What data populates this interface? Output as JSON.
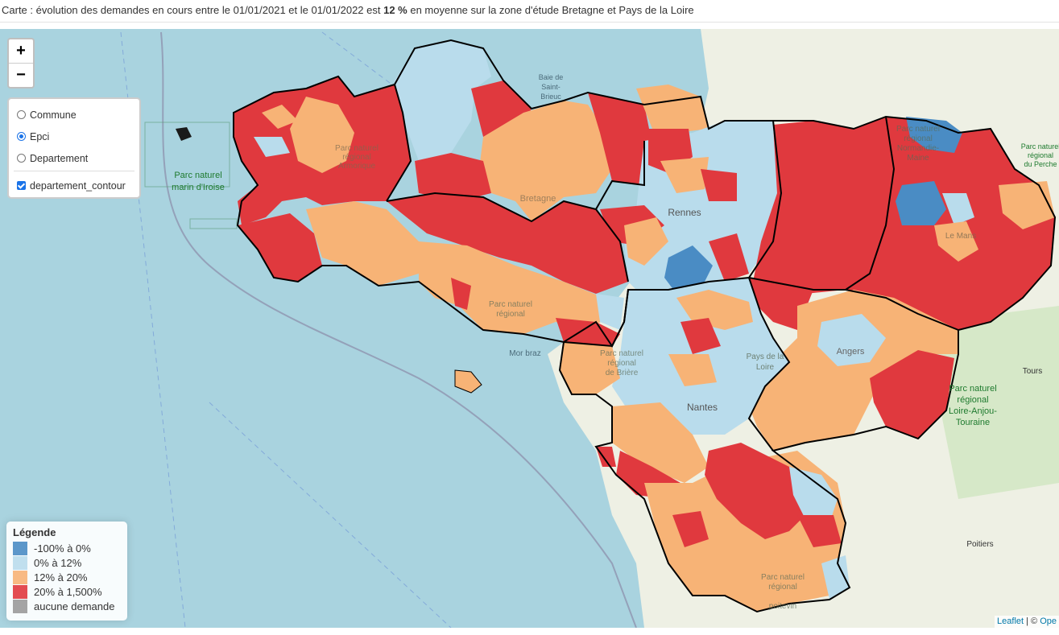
{
  "caption": {
    "prefix": "Carte : évolution des demandes en cours entre le 01/01/2021 et le 01/01/2022 est ",
    "value": "12 %",
    "suffix": " en moyenne sur la zone d'étude Bretagne et Pays de la Loire"
  },
  "zoom": {
    "in_label": "+",
    "out_label": "−"
  },
  "layer_control": {
    "base_layers": [
      {
        "label": "Commune",
        "selected": false
      },
      {
        "label": "Epci",
        "selected": true
      },
      {
        "label": "Departement",
        "selected": false
      }
    ],
    "overlays": [
      {
        "label": "departement_contour",
        "checked": true
      }
    ]
  },
  "legend": {
    "title": "Légende",
    "items": [
      {
        "label": "-100% à 0%",
        "color": "#4a8cc4"
      },
      {
        "label": "0% à 12%",
        "color": "#b9dcec"
      },
      {
        "label": "12% à 20%",
        "color": "#f7b376"
      },
      {
        "label": "20% à 1,500%",
        "color": "#e0393e"
      },
      {
        "label": "aucune demande",
        "color": "#9a9a9a"
      }
    ]
  },
  "map_labels": {
    "parc_iroise": [
      "Parc naturel",
      "marin d'Iroise"
    ],
    "baie": [
      "Baie de",
      "Saint-",
      "Brieuc"
    ],
    "parc_armorique": [
      "Parc naturel",
      "régional",
      "Armorique"
    ],
    "bretagne": "Bretagne",
    "rennes": "Rennes",
    "parc_normandie": [
      "Parc naturel",
      "régional",
      "Normandie-",
      "Maine"
    ],
    "parc_perche": [
      "Parc naturel",
      "régional",
      "du Perche"
    ],
    "le_mans": "Le Mans",
    "parc_golfe": [
      "Parc naturel",
      "régional"
    ],
    "mor_braz": "Mor braz",
    "parc_briere": [
      "Parc naturel",
      "régional",
      "de Brière"
    ],
    "pays_loire": [
      "Pays de la",
      "Loire"
    ],
    "angers": "Angers",
    "nantes": "Nantes",
    "tours": "Tours",
    "parc_loire_anjou": [
      "Parc naturel",
      "régional",
      "Loire-Anjou-",
      "Touraine"
    ],
    "poitiers": "Poitiers",
    "parc_poitevin": [
      "Parc naturel",
      "régional",
      "poitevin"
    ]
  },
  "attribution": {
    "leaflet": "Leaflet",
    "sep": " | © ",
    "osm": "Ope"
  }
}
